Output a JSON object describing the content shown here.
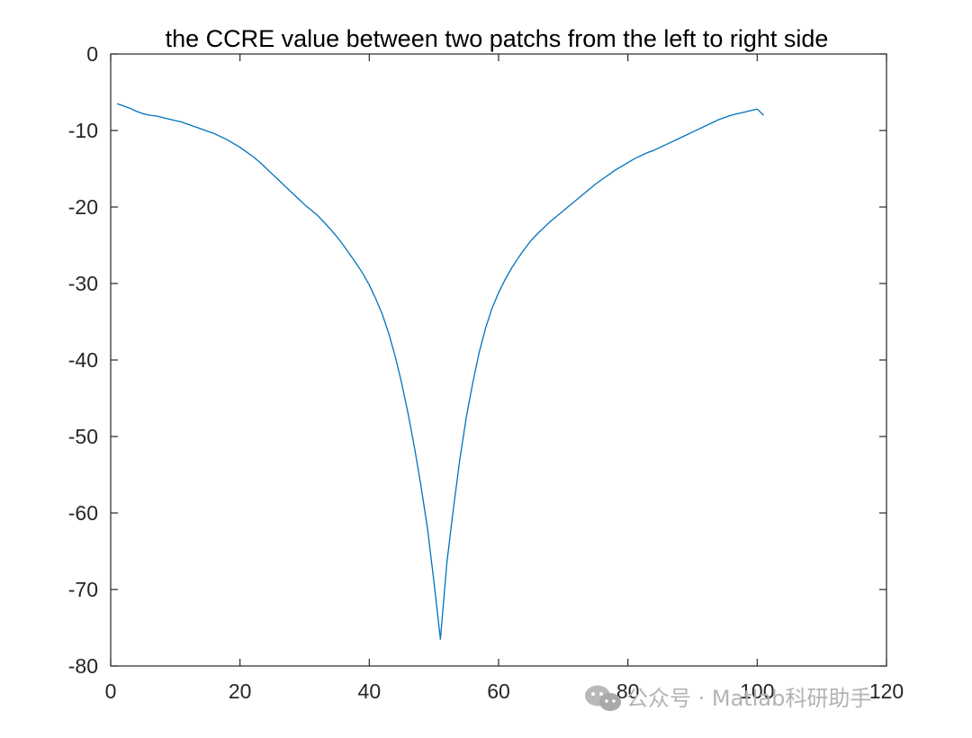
{
  "chart_data": {
    "type": "line",
    "title": "the CCRE value between two patchs from the left to right side",
    "xlabel": "",
    "ylabel": "",
    "xlim": [
      0,
      120
    ],
    "ylim": [
      -80,
      0
    ],
    "xticks": [
      0,
      20,
      40,
      60,
      80,
      100,
      120
    ],
    "yticks": [
      0,
      -10,
      -20,
      -30,
      -40,
      -50,
      -60,
      -70,
      -80
    ],
    "grid": false,
    "series": [
      {
        "color": "#0072BD",
        "x": [
          1,
          2,
          3,
          4,
          5,
          6,
          7,
          8,
          9,
          10,
          11,
          12,
          13,
          14,
          15,
          16,
          17,
          18,
          19,
          20,
          21,
          22,
          23,
          24,
          25,
          26,
          27,
          28,
          29,
          30,
          31,
          32,
          33,
          34,
          35,
          36,
          37,
          38,
          39,
          40,
          41,
          42,
          43,
          44,
          45,
          46,
          47,
          48,
          49,
          50,
          51,
          52,
          53,
          54,
          55,
          56,
          57,
          58,
          59,
          60,
          61,
          62,
          63,
          64,
          65,
          66,
          67,
          68,
          69,
          70,
          71,
          72,
          73,
          74,
          75,
          76,
          77,
          78,
          79,
          80,
          81,
          82,
          83,
          84,
          85,
          86,
          87,
          88,
          89,
          90,
          91,
          92,
          93,
          94,
          95,
          96,
          97,
          98,
          99,
          100,
          101
        ],
        "y": [
          -6.5,
          -6.8,
          -7.1,
          -7.5,
          -7.8,
          -8.0,
          -8.1,
          -8.3,
          -8.5,
          -8.7,
          -8.9,
          -9.2,
          -9.5,
          -9.8,
          -10.1,
          -10.4,
          -10.8,
          -11.2,
          -11.7,
          -12.2,
          -12.8,
          -13.4,
          -14.1,
          -14.9,
          -15.7,
          -16.5,
          -17.3,
          -18.1,
          -18.9,
          -19.7,
          -20.4,
          -21.1,
          -22.0,
          -22.9,
          -23.9,
          -25.0,
          -26.2,
          -27.4,
          -28.7,
          -30.2,
          -32.0,
          -34.0,
          -36.5,
          -39.5,
          -43.0,
          -47.0,
          -51.5,
          -56.5,
          -62.0,
          -69.0,
          -76.5,
          -66.5,
          -59.5,
          -53.0,
          -47.5,
          -43.0,
          -39.0,
          -35.8,
          -33.2,
          -31.2,
          -29.5,
          -28.0,
          -26.7,
          -25.5,
          -24.4,
          -23.5,
          -22.7,
          -21.9,
          -21.2,
          -20.5,
          -19.8,
          -19.1,
          -18.4,
          -17.7,
          -17.0,
          -16.4,
          -15.8,
          -15.2,
          -14.7,
          -14.2,
          -13.7,
          -13.3,
          -12.9,
          -12.6,
          -12.2,
          -11.8,
          -11.4,
          -11.0,
          -10.6,
          -10.2,
          -9.8,
          -9.4,
          -9.0,
          -8.6,
          -8.3,
          -8.0,
          -7.8,
          -7.6,
          -7.4,
          -7.2,
          -8.0
        ]
      }
    ]
  },
  "watermark": {
    "text": "公众号 · Matlab科研助手",
    "icon": "wechat-icon"
  }
}
